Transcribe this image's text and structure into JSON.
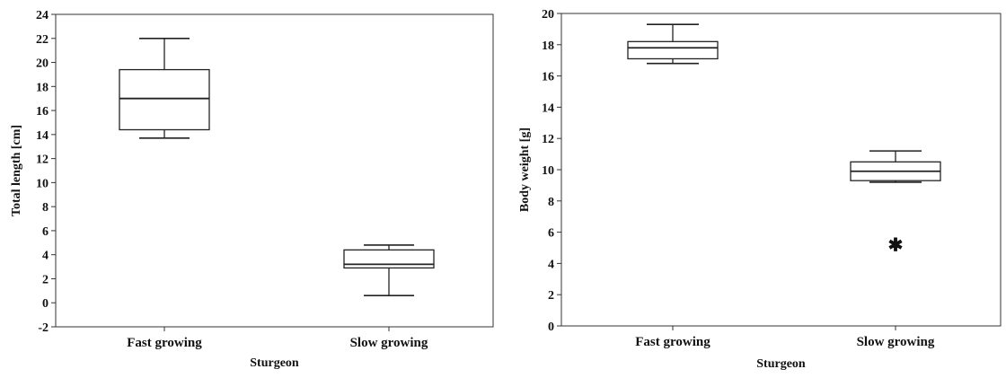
{
  "chart_data": [
    {
      "type": "box",
      "xlabel": "Sturgeon",
      "ylabel": "Total length [cm]",
      "ylim": [
        -2,
        24
      ],
      "yticks": [
        -2,
        0,
        2,
        4,
        6,
        8,
        10,
        12,
        14,
        16,
        18,
        20,
        22,
        24
      ],
      "grid": false,
      "categories": [
        "Fast growing",
        "Slow growing"
      ],
      "boxes": [
        {
          "category": "Fast growing",
          "whisker_low": 13.7,
          "q1": 14.4,
          "median": 17.0,
          "q3": 19.4,
          "whisker_high": 22.0,
          "outliers": []
        },
        {
          "category": "Slow growing",
          "whisker_low": 0.6,
          "q1": 2.9,
          "median": 3.2,
          "q3": 4.4,
          "whisker_high": 4.8,
          "outliers": []
        }
      ]
    },
    {
      "type": "box",
      "xlabel": "Sturgeon",
      "ylabel": "Body weight [g]",
      "ylim": [
        0,
        20
      ],
      "yticks": [
        0,
        2,
        4,
        6,
        8,
        10,
        12,
        14,
        16,
        18,
        20
      ],
      "grid": false,
      "categories": [
        "Fast growing",
        "Slow growing"
      ],
      "boxes": [
        {
          "category": "Fast growing",
          "whisker_low": 16.8,
          "q1": 17.1,
          "median": 17.8,
          "q3": 18.2,
          "whisker_high": 19.3,
          "outliers": []
        },
        {
          "category": "Slow growing",
          "whisker_low": 9.2,
          "q1": 9.3,
          "median": 9.9,
          "q3": 10.5,
          "whisker_high": 11.2,
          "outliers": [
            5.2
          ]
        }
      ]
    }
  ]
}
